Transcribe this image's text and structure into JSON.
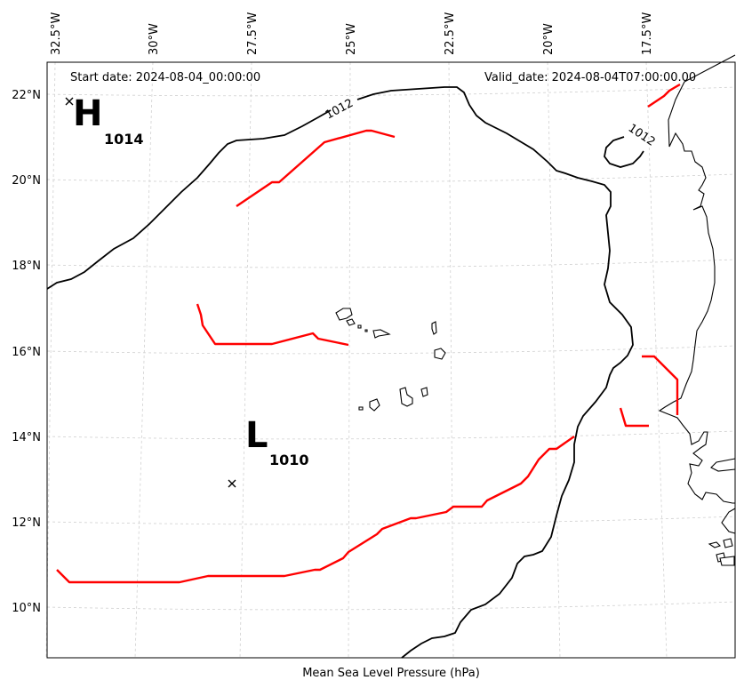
{
  "header": {
    "start_date": "Start date: 2024-08-04_00:00:00",
    "valid_date": "Valid_date: 2024-08-04T07:00:00.00"
  },
  "axes": {
    "lon_labels": [
      "32.5°W",
      "30°W",
      "27.5°W",
      "25°W",
      "22.5°W",
      "20°W",
      "17.5°W"
    ],
    "lat_labels": [
      "22°N",
      "20°N",
      "18°N",
      "16°N",
      "14°N",
      "12°N",
      "10°N"
    ],
    "xlabel": "Mean Sea Level Pressure (hPa)"
  },
  "pressure_centers": [
    {
      "type": "H",
      "value": "1014",
      "lon": -32.6,
      "lat": 21.8
    },
    {
      "type": "L",
      "value": "1010",
      "lon": -27.7,
      "lat": 12.9
    }
  ],
  "isobars": [
    {
      "label": "1012"
    },
    {
      "label": "1012"
    }
  ],
  "colors": {
    "isobar": "#000000",
    "front": "#ff0000",
    "grid": "#d0d0d0"
  }
}
